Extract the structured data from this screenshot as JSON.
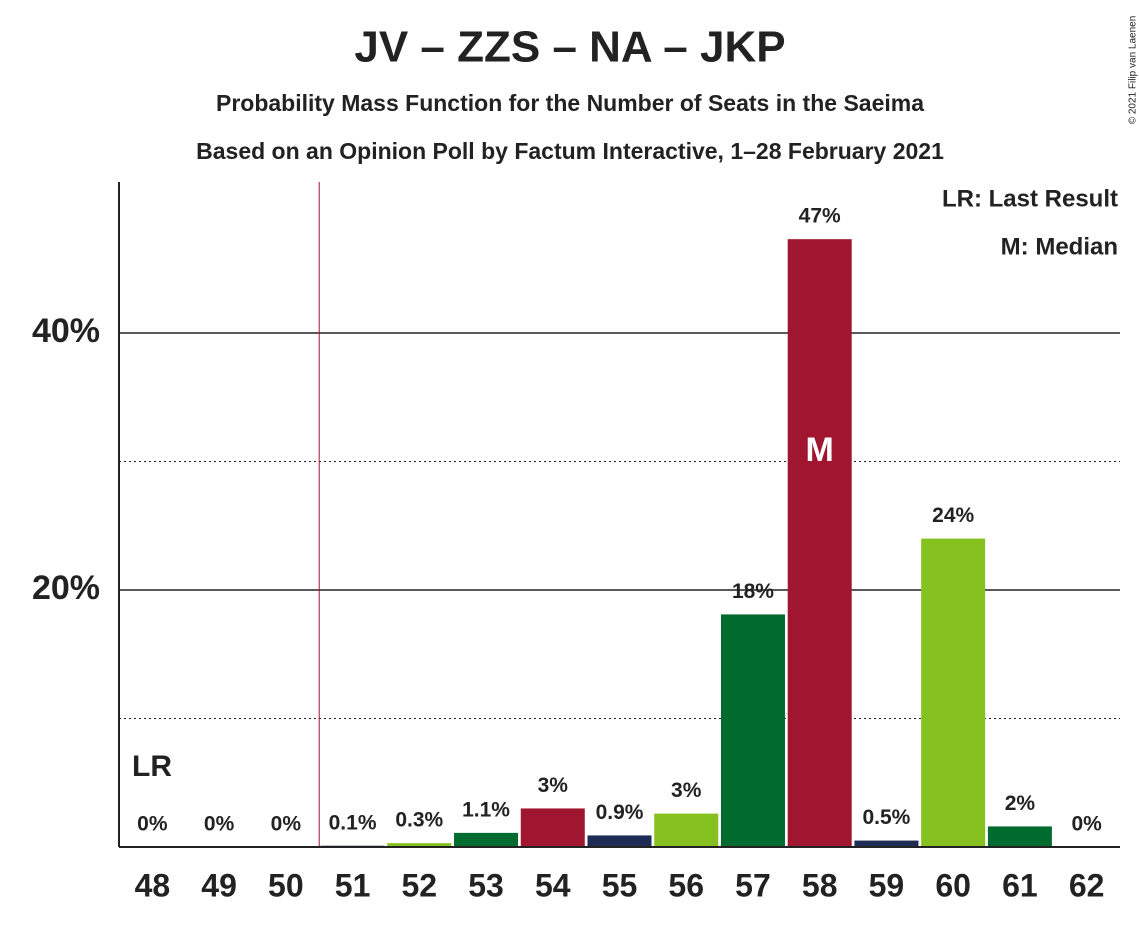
{
  "chart_data": {
    "type": "bar",
    "title": "JV – ZZS – NA – JKP",
    "subtitle": "Probability Mass Function for the Number of Seats in the Saeima",
    "subtitle2": "Based on an Opinion Poll by Factum Interactive, 1–28 February 2021",
    "copyright": "© 2021 Filip van Laenen",
    "categories": [
      "48",
      "49",
      "50",
      "51",
      "52",
      "53",
      "54",
      "55",
      "56",
      "57",
      "58",
      "59",
      "60",
      "61",
      "62"
    ],
    "values": [
      0,
      0,
      0,
      0.1,
      0.3,
      1.1,
      3,
      0.9,
      2.6,
      18.1,
      47.3,
      0.5,
      24,
      1.6,
      0
    ],
    "value_labels": [
      "0%",
      "0%",
      "0%",
      "0.1%",
      "0.3%",
      "1.1%",
      "3%",
      "0.9%",
      "3%",
      "18%",
      "47%",
      "0.5%",
      "24%",
      "2%",
      "0%"
    ],
    "colors": [
      "#86c21f",
      "#006a2f",
      "#a0152f",
      "#1e2b55",
      "#86c21f",
      "#006a2f",
      "#a0152f",
      "#1e2b55",
      "#86c21f",
      "#006a2f",
      "#a0152f",
      "#1e2b55",
      "#86c21f",
      "#006a2f",
      "#a0152f"
    ],
    "ylim": [
      0,
      51.75
    ],
    "yticks": [
      {
        "value": 20,
        "label": "20%"
      },
      {
        "value": 40,
        "label": "40%"
      }
    ],
    "minor_yticks": [
      10,
      30
    ],
    "last_result_line": 50.5,
    "last_result_label": "LR",
    "median_index": 10,
    "median_label": "M",
    "legend": [
      "LR: Last Result",
      "M: Median"
    ]
  }
}
